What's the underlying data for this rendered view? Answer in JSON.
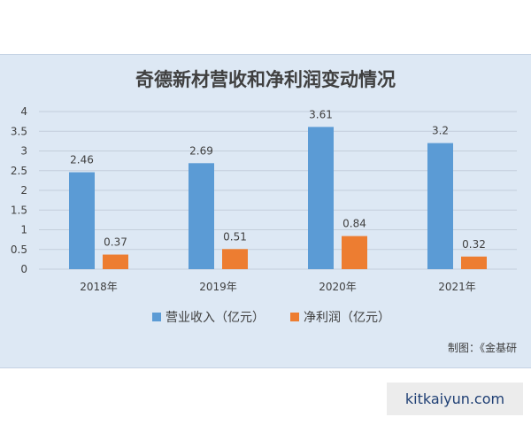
{
  "chart_data": {
    "type": "bar",
    "title": "奇德新材营收和净利润变动情况",
    "categories": [
      "2018年",
      "2019年",
      "2020年",
      "2021年"
    ],
    "series": [
      {
        "name": "营业收入（亿元）",
        "values": [
          2.46,
          2.69,
          3.61,
          3.2
        ],
        "labels": [
          "2.46",
          "2.69",
          "3.61",
          "3.2"
        ],
        "color": "#5b9bd5"
      },
      {
        "name": "净利润（亿元）",
        "values": [
          0.37,
          0.51,
          0.84,
          0.32
        ],
        "labels": [
          "0.37",
          "0.51",
          "0.84",
          "0.32"
        ],
        "color": "#ed7d31"
      }
    ],
    "ylim": [
      0,
      4
    ],
    "yticks": [
      "0",
      "0.5",
      "1",
      "1.5",
      "2",
      "2.5",
      "3",
      "3.5",
      "4"
    ],
    "grid": true,
    "legend": "bottom"
  },
  "credit": "制图：《金基研",
  "watermark": "kitkaiyun.com"
}
